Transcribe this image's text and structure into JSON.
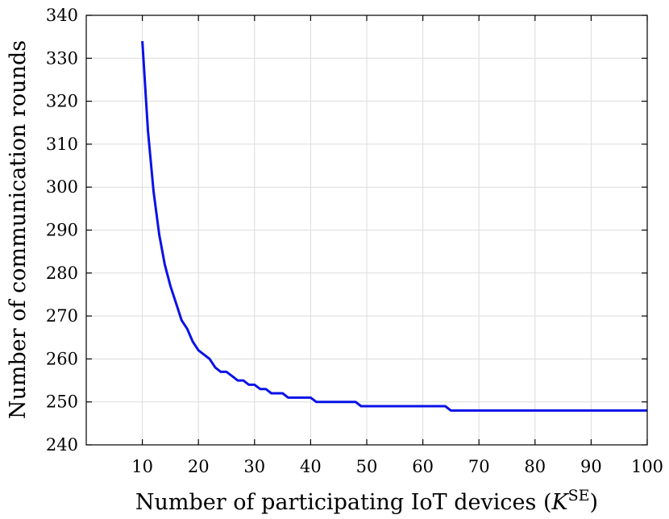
{
  "chart_data": {
    "type": "line",
    "title": "",
    "xlabel": "Number of participating IoT devices (",
    "xlabel_symbol": "K",
    "xlabel_superscript": "SE",
    "xlabel_close": ")",
    "ylabel": "Number of communication rounds",
    "xlim": [
      0,
      100
    ],
    "ylim": [
      240,
      340
    ],
    "grid": true,
    "legend": "none",
    "xticks": [
      10,
      20,
      30,
      40,
      50,
      60,
      70,
      80,
      90,
      100
    ],
    "yticks": [
      240,
      250,
      260,
      270,
      280,
      290,
      300,
      310,
      320,
      330,
      340
    ],
    "series": [
      {
        "color": "#0a12e6",
        "x": [
          10,
          11,
          12,
          13,
          14,
          15,
          16,
          17,
          18,
          19,
          20,
          21,
          22,
          23,
          24,
          25,
          26,
          27,
          28,
          29,
          30,
          31,
          32,
          33,
          34,
          35,
          36,
          37,
          38,
          39,
          40,
          41,
          42,
          43,
          44,
          45,
          46,
          47,
          48,
          49,
          50,
          55,
          60,
          64,
          65,
          70,
          80,
          90,
          100
        ],
        "y": [
          334,
          313,
          299,
          289,
          282,
          277,
          273,
          269,
          267,
          264,
          262,
          261,
          260,
          258,
          257,
          257,
          256,
          255,
          255,
          254,
          254,
          253,
          253,
          252,
          252,
          252,
          251,
          251,
          251,
          251,
          251,
          250,
          250,
          250,
          250,
          250,
          250,
          250,
          250,
          249,
          249,
          249,
          249,
          249,
          248,
          248,
          248,
          248,
          248
        ]
      }
    ]
  }
}
